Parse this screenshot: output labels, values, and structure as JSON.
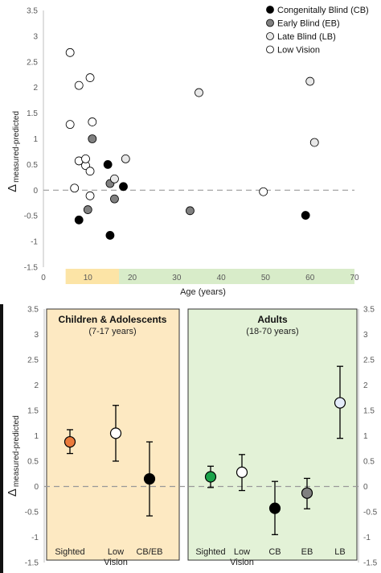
{
  "colors": {
    "cb": "#000000",
    "eb": "#808080",
    "lb": "#e8e8e8",
    "lowvision": "#ffffff",
    "sighted": "#ea7a3c",
    "adult_sighted": "#1aa34a",
    "adult_lb": "#e4ecfa",
    "children_bg": "#fde9c2",
    "adults_bg": "#e3f2d7",
    "children_band": "#fce4a6",
    "adults_band": "#d8ecc9"
  },
  "chart_data": [
    {
      "type": "scatter",
      "title": "",
      "xlabel": "Age (years)",
      "ylabel": {
        "delta": "Δ",
        "sub": "measured-predicted"
      },
      "xlim": [
        0,
        70
      ],
      "ylim": [
        -1.5,
        3.5
      ],
      "xticks": [
        "0",
        "10",
        "20",
        "30",
        "40",
        "50",
        "60",
        "70"
      ],
      "yticks": [
        "-1.5",
        "-1",
        "-0.5",
        "0",
        "0.5",
        "1",
        "1.5",
        "2",
        "2.5",
        "3",
        "3.5"
      ],
      "reference_line": 0,
      "age_bands": [
        {
          "name": "children",
          "range": [
            5,
            17
          ]
        },
        {
          "name": "adults",
          "range": [
            17,
            70
          ]
        }
      ],
      "legend_position": "top-right",
      "legend": [
        {
          "label": "Congenitally Blind (CB)",
          "group": "cb"
        },
        {
          "label": "Early Blind (EB)",
          "group": "eb"
        },
        {
          "label": "Late Blind (LB)",
          "group": "lb"
        },
        {
          "label": "Low Vision",
          "group": "lowvision"
        }
      ],
      "series": [
        {
          "group": "cb",
          "points": [
            [
              8,
              -0.58
            ],
            [
              14.5,
              0.5
            ],
            [
              15,
              -0.88
            ],
            [
              18,
              0.07
            ],
            [
              59,
              -0.49
            ]
          ]
        },
        {
          "group": "eb",
          "points": [
            [
              10,
              -0.38
            ],
            [
              11,
              1.0
            ],
            [
              15,
              0.13
            ],
            [
              16,
              -0.17
            ],
            [
              33,
              -0.4
            ]
          ]
        },
        {
          "group": "lb",
          "points": [
            [
              16,
              0.22
            ],
            [
              18.5,
              0.61
            ],
            [
              35,
              1.9
            ],
            [
              60,
              2.12
            ],
            [
              61,
              0.93
            ]
          ]
        },
        {
          "group": "lowvision",
          "points": [
            [
              6,
              2.68
            ],
            [
              6,
              1.28
            ],
            [
              7,
              0.04
            ],
            [
              8,
              2.04
            ],
            [
              8,
              0.57
            ],
            [
              9.5,
              0.48
            ],
            [
              9.5,
              0.61
            ],
            [
              10.5,
              0.37
            ],
            [
              10.5,
              -0.11
            ],
            [
              10.5,
              2.19
            ],
            [
              11,
              1.33
            ],
            [
              49.5,
              -0.03
            ]
          ]
        }
      ]
    },
    {
      "type": "errorbar",
      "ylabel": {
        "delta": "Δ",
        "sub": "measured-predicted"
      },
      "ylim": [
        -1.5,
        3.5
      ],
      "yticks": [
        "-1.5",
        "-1",
        "-0.5",
        "0",
        "0.5",
        "1",
        "1.5",
        "2",
        "2.5",
        "3",
        "3.5"
      ],
      "reference_line": 0,
      "panels": [
        {
          "name": "children",
          "title": "Children & Adolescents",
          "subtitle": "(7-17 years)",
          "groups": [
            {
              "label": [
                "Sighted"
              ],
              "mean": 0.88,
              "lower": 0.65,
              "upper": 1.12,
              "color_key": "sighted"
            },
            {
              "label": [
                "Low",
                "Vision"
              ],
              "mean": 1.05,
              "lower": 0.5,
              "upper": 1.6,
              "color_key": "lowvision"
            },
            {
              "label": [
                "CB/EB"
              ],
              "mean": 0.15,
              "lower": -0.58,
              "upper": 0.88,
              "color_key": "cb"
            }
          ]
        },
        {
          "name": "adults",
          "title": "Adults",
          "subtitle": "(18-70 years)",
          "groups": [
            {
              "label": [
                "Sighted"
              ],
              "mean": 0.19,
              "lower": -0.02,
              "upper": 0.4,
              "color_key": "adult_sighted"
            },
            {
              "label": [
                "Low",
                "Vision"
              ],
              "mean": 0.28,
              "lower": -0.08,
              "upper": 0.63,
              "color_key": "lowvision"
            },
            {
              "label": [
                "CB"
              ],
              "mean": -0.43,
              "lower": -0.95,
              "upper": 0.1,
              "color_key": "cb"
            },
            {
              "label": [
                "EB"
              ],
              "mean": -0.13,
              "lower": -0.44,
              "upper": 0.16,
              "color_key": "eb"
            },
            {
              "label": [
                "LB"
              ],
              "mean": 1.65,
              "lower": 0.95,
              "upper": 2.37,
              "color_key": "adult_lb"
            }
          ]
        }
      ]
    }
  ]
}
